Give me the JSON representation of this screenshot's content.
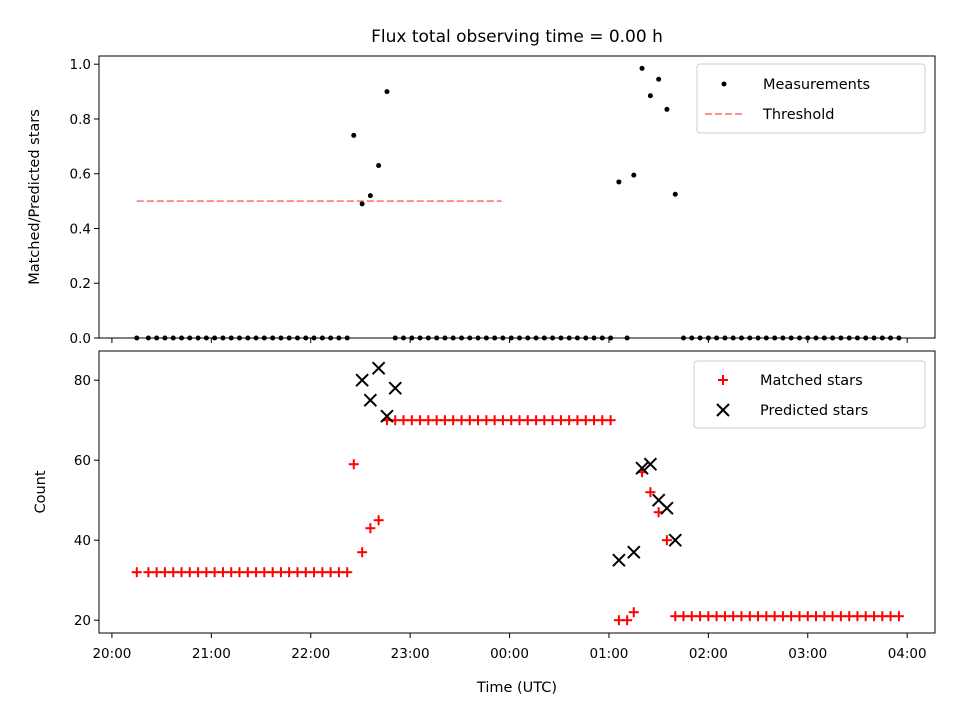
{
  "title": "Flux total observing time = 0.00 h",
  "colors": {
    "measurement": "#000000",
    "threshold": "#ff7f7f",
    "matched": "#ff0000",
    "predicted": "#000000"
  },
  "x_ticks": [
    {
      "label": "20:00",
      "v": 20.0
    },
    {
      "label": "21:00",
      "v": 21.0
    },
    {
      "label": "22:00",
      "v": 22.0
    },
    {
      "label": "23:00",
      "v": 23.0
    },
    {
      "label": "00:00",
      "v": 24.0
    },
    {
      "label": "01:00",
      "v": 25.0
    },
    {
      "label": "02:00",
      "v": 26.0
    },
    {
      "label": "03:00",
      "v": 27.0
    },
    {
      "label": "04:00",
      "v": 28.0
    }
  ],
  "chart_data": [
    {
      "type": "scatter",
      "panel": "top",
      "ylabel": "Matched/Predicted stars",
      "xlim": [
        19.87,
        28.28
      ],
      "ylim": [
        0,
        1.03
      ],
      "yticks": [
        "0.0",
        "0.2",
        "0.4",
        "0.6",
        "0.8",
        "1.0"
      ],
      "legend": "top-right",
      "threshold": {
        "name": "Threshold",
        "y": 0.5,
        "x": [
          20.25,
          23.92
        ],
        "style": "dashed"
      },
      "series": [
        {
          "name": "Measurements",
          "x": [
            20.25,
            20.367,
            20.45,
            20.533,
            20.617,
            20.7,
            20.783,
            20.867,
            20.95,
            21.033,
            21.117,
            21.2,
            21.283,
            21.367,
            21.45,
            21.533,
            21.617,
            21.7,
            21.783,
            21.867,
            21.95,
            22.033,
            22.117,
            22.2,
            22.283,
            22.367,
            22.433,
            22.517,
            22.6,
            22.683,
            22.767,
            22.85,
            22.933,
            23.017,
            23.1,
            23.183,
            23.267,
            23.35,
            23.433,
            23.517,
            23.6,
            23.683,
            23.767,
            23.85,
            23.933,
            24.017,
            24.1,
            24.183,
            24.267,
            24.35,
            24.433,
            24.517,
            24.6,
            24.683,
            24.767,
            24.85,
            24.933,
            25.017,
            25.1,
            25.183,
            25.25,
            25.333,
            25.417,
            25.5,
            25.583,
            25.667,
            25.75,
            25.833,
            25.917,
            26.0,
            26.083,
            26.167,
            26.25,
            26.333,
            26.417,
            26.5,
            26.583,
            26.667,
            26.75,
            26.833,
            26.917,
            27.0,
            27.083,
            27.167,
            27.25,
            27.333,
            27.417,
            27.5,
            27.583,
            27.667,
            27.75,
            27.833,
            27.917
          ],
          "y": [
            0,
            0,
            0,
            0,
            0,
            0,
            0,
            0,
            0,
            0,
            0,
            0,
            0,
            0,
            0,
            0,
            0,
            0,
            0,
            0,
            0,
            0,
            0,
            0,
            0,
            0,
            0.74,
            0.49,
            0.52,
            0.63,
            0.9,
            0,
            0,
            0,
            0,
            0,
            0,
            0,
            0,
            0,
            0,
            0,
            0,
            0,
            0,
            0,
            0,
            0,
            0,
            0,
            0,
            0,
            0,
            0,
            0,
            0,
            0,
            0,
            0.57,
            0,
            0.595,
            0.985,
            0.885,
            0.945,
            0.835,
            0.525,
            0,
            0,
            0,
            0,
            0,
            0,
            0,
            0,
            0,
            0,
            0,
            0,
            0,
            0,
            0,
            0,
            0,
            0,
            0,
            0,
            0,
            0,
            0,
            0,
            0,
            0,
            0
          ]
        }
      ]
    },
    {
      "type": "scatter",
      "panel": "bottom",
      "xlabel": "Time (UTC)",
      "ylabel": "Count",
      "xlim": [
        19.87,
        28.28
      ],
      "ylim": [
        16.8,
        87.3
      ],
      "yticks": [
        "20",
        "40",
        "60",
        "80"
      ],
      "legend": "top-right",
      "series": [
        {
          "name": "Matched stars",
          "marker": "+",
          "x": [
            20.25,
            20.367,
            20.45,
            20.533,
            20.617,
            20.7,
            20.783,
            20.867,
            20.95,
            21.033,
            21.117,
            21.2,
            21.283,
            21.367,
            21.45,
            21.533,
            21.617,
            21.7,
            21.783,
            21.867,
            21.95,
            22.033,
            22.117,
            22.2,
            22.283,
            22.367,
            22.433,
            22.517,
            22.6,
            22.683,
            22.767,
            22.85,
            22.933,
            23.017,
            23.1,
            23.183,
            23.267,
            23.35,
            23.433,
            23.517,
            23.6,
            23.683,
            23.767,
            23.85,
            23.933,
            24.017,
            24.1,
            24.183,
            24.267,
            24.35,
            24.433,
            24.517,
            24.6,
            24.683,
            24.767,
            24.85,
            24.933,
            25.017,
            25.1,
            25.183,
            25.25,
            25.333,
            25.417,
            25.5,
            25.583,
            25.667,
            25.75,
            25.833,
            25.917,
            26.0,
            26.083,
            26.167,
            26.25,
            26.333,
            26.417,
            26.5,
            26.583,
            26.667,
            26.75,
            26.833,
            26.917,
            27.0,
            27.083,
            27.167,
            27.25,
            27.333,
            27.417,
            27.5,
            27.583,
            27.667,
            27.75,
            27.833,
            27.917
          ],
          "y": [
            32,
            32,
            32,
            32,
            32,
            32,
            32,
            32,
            32,
            32,
            32,
            32,
            32,
            32,
            32,
            32,
            32,
            32,
            32,
            32,
            32,
            32,
            32,
            32,
            32,
            32,
            59,
            37,
            43,
            45,
            70,
            70,
            70,
            70,
            70,
            70,
            70,
            70,
            70,
            70,
            70,
            70,
            70,
            70,
            70,
            70,
            70,
            70,
            70,
            70,
            70,
            70,
            70,
            70,
            70,
            70,
            70,
            70,
            20,
            20,
            22,
            57,
            52,
            47,
            40,
            21,
            21,
            21,
            21,
            21,
            21,
            21,
            21,
            21,
            21,
            21,
            21,
            21,
            21,
            21,
            21,
            21,
            21,
            21,
            21,
            21,
            21,
            21,
            21,
            21,
            21,
            21,
            21
          ]
        },
        {
          "name": "Predicted stars",
          "marker": "x",
          "x": [
            22.517,
            22.6,
            22.683,
            22.767,
            22.85,
            25.1,
            25.25,
            25.333,
            25.417,
            25.5,
            25.583,
            25.667
          ],
          "y": [
            80,
            75,
            83,
            71,
            78,
            35,
            37,
            58,
            59,
            50,
            48,
            40
          ]
        }
      ]
    }
  ]
}
